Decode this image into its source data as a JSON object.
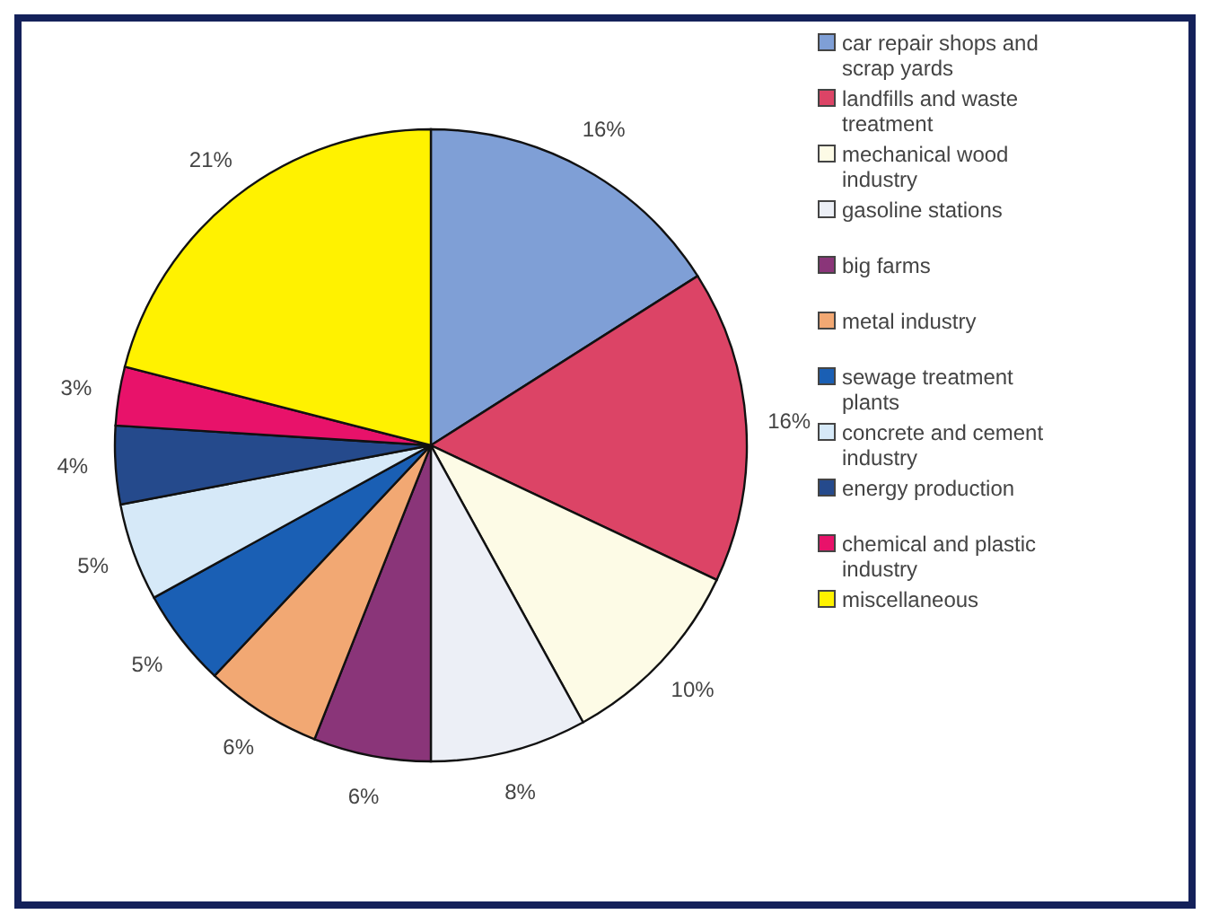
{
  "chart_data": {
    "type": "pie",
    "categories": [
      "car repair shops and scrap yards",
      "landfills and waste treatment",
      "mechanical wood industry",
      "gasoline stations",
      "big farms",
      "metal industry",
      "sewage treatment plants",
      "concrete and cement industry",
      "energy production",
      "chemical and plastic industry",
      "miscellaneous"
    ],
    "values": [
      16,
      16,
      10,
      8,
      6,
      6,
      5,
      5,
      4,
      3,
      21
    ],
    "colors": [
      "#7f9fd6",
      "#dc4466",
      "#fdfbe6",
      "#eceff6",
      "#8a3579",
      "#f2a873",
      "#1a5fb4",
      "#d6e9f8",
      "#254a8c",
      "#e8126a",
      "#fff200"
    ],
    "value_labels": [
      "16%",
      "16%",
      "10%",
      "8%",
      "6%",
      "6%",
      "5%",
      "5%",
      "4%",
      "3%",
      "21%"
    ],
    "legend": "right"
  }
}
